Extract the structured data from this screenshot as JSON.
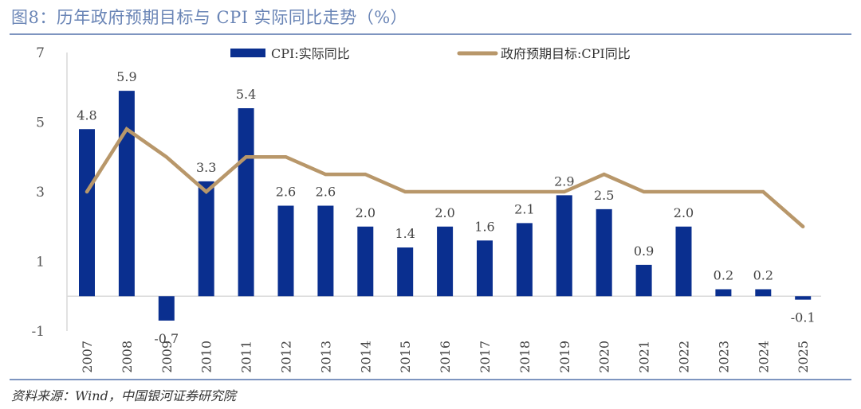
{
  "header": {
    "title": "图8：历年政府预期目标与 CPI 实际同比走势（%）"
  },
  "footer": {
    "source": "资料来源：Wind，中国银河证券研究院"
  },
  "colors": {
    "bar": "#0a2f8f",
    "line": "#b8976a",
    "axis": "#d9d9d9",
    "rule": "#7e95c0"
  },
  "chart_data": {
    "type": "bar",
    "title": "历年政府预期目标与 CPI 实际同比走势（%）",
    "xlabel": "",
    "ylabel": "",
    "ylim": [
      -1,
      7
    ],
    "yticks": [
      7,
      5,
      3,
      1,
      -1
    ],
    "grid": false,
    "legend_position": "top",
    "categories": [
      "2007",
      "2008",
      "2009",
      "2010",
      "2011",
      "2012",
      "2013",
      "2014",
      "2015",
      "2016",
      "2017",
      "2018",
      "2019",
      "2020",
      "2021",
      "2022",
      "2023",
      "2024",
      "2025"
    ],
    "series": [
      {
        "name": "CPI:实际同比",
        "type": "bar",
        "values": [
          4.8,
          5.9,
          -0.7,
          3.3,
          5.4,
          2.6,
          2.6,
          2.0,
          1.4,
          2.0,
          1.6,
          2.1,
          2.9,
          2.5,
          0.9,
          2.0,
          0.2,
          0.2,
          -0.1
        ],
        "labels": [
          "4.8",
          "5.9",
          "-0.7",
          "3.3",
          "5.4",
          "2.6",
          "2.6",
          "2.0",
          "1.4",
          "2.0",
          "1.6",
          "2.1",
          "2.9",
          "2.5",
          "0.9",
          "2.0",
          "0.2",
          "0.2",
          "-0.1"
        ]
      },
      {
        "name": "政府预期目标:CPI同比",
        "type": "line",
        "values": [
          3,
          4.8,
          4,
          3,
          4,
          4,
          3.5,
          3.5,
          3,
          3,
          3,
          3,
          3,
          3.5,
          3,
          3,
          3,
          3,
          2
        ]
      }
    ]
  }
}
